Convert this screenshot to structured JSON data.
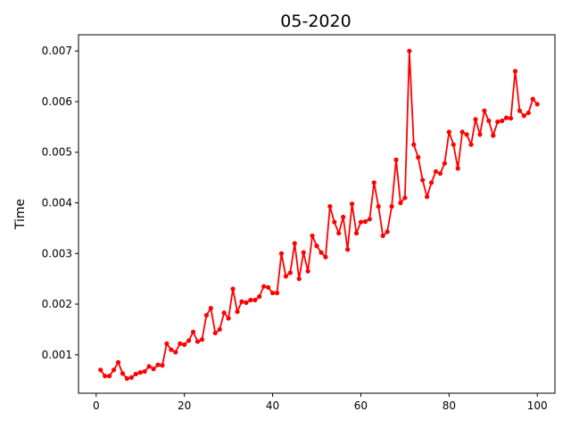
{
  "chart_data": {
    "type": "line",
    "title": "05-2020",
    "xlabel": "",
    "ylabel": "Time",
    "xlim": [
      -4,
      104
    ],
    "ylim": [
      0.00024,
      0.00732
    ],
    "xticks": [
      0,
      20,
      40,
      60,
      80,
      100
    ],
    "yticks": [
      0.001,
      0.002,
      0.003,
      0.004,
      0.005,
      0.006,
      0.007
    ],
    "ytick_labels": [
      "0.001",
      "0.002",
      "0.003",
      "0.004",
      "0.005",
      "0.006",
      "0.007"
    ],
    "grid": false,
    "legend": "none",
    "series": [
      {
        "color": "#ff0000",
        "marker": "circle",
        "x": [
          1,
          2,
          3,
          4,
          5,
          6,
          7,
          8,
          9,
          10,
          11,
          12,
          13,
          14,
          15,
          16,
          17,
          18,
          19,
          20,
          21,
          22,
          23,
          24,
          25,
          26,
          27,
          28,
          29,
          30,
          31,
          32,
          33,
          34,
          35,
          36,
          37,
          38,
          39,
          40,
          41,
          42,
          43,
          44,
          45,
          46,
          47,
          48,
          49,
          50,
          51,
          52,
          53,
          54,
          55,
          56,
          57,
          58,
          59,
          60,
          61,
          62,
          63,
          64,
          65,
          66,
          67,
          68,
          69,
          70,
          71,
          72,
          73,
          74,
          75,
          76,
          77,
          78,
          79,
          80,
          81,
          82,
          83,
          84,
          85,
          86,
          87,
          88,
          89,
          90,
          91,
          92,
          93,
          94,
          95,
          96,
          97,
          98,
          99,
          100
        ],
        "y": [
          0.0007,
          0.00058,
          0.00058,
          0.0007,
          0.00085,
          0.00063,
          0.00053,
          0.00055,
          0.00062,
          0.00065,
          0.00067,
          0.00077,
          0.00072,
          0.0008,
          0.00079,
          0.00122,
          0.0011,
          0.00105,
          0.00122,
          0.0012,
          0.00128,
          0.00145,
          0.00126,
          0.0013,
          0.00178,
          0.00192,
          0.00143,
          0.0015,
          0.00183,
          0.00172,
          0.0023,
          0.00185,
          0.00205,
          0.00203,
          0.00208,
          0.00208,
          0.00215,
          0.00235,
          0.00233,
          0.00222,
          0.00222,
          0.003,
          0.00255,
          0.00262,
          0.0032,
          0.0025,
          0.00302,
          0.00265,
          0.00335,
          0.00315,
          0.00302,
          0.00293,
          0.00393,
          0.00362,
          0.0034,
          0.00372,
          0.00308,
          0.00398,
          0.0034,
          0.00362,
          0.00363,
          0.00368,
          0.0044,
          0.00393,
          0.00335,
          0.00343,
          0.00393,
          0.00485,
          0.004,
          0.0041,
          0.007,
          0.00515,
          0.0049,
          0.00445,
          0.00412,
          0.0044,
          0.00462,
          0.00458,
          0.00478,
          0.0054,
          0.00515,
          0.00468,
          0.0054,
          0.00535,
          0.00515,
          0.00565,
          0.00535,
          0.00582,
          0.00562,
          0.00533,
          0.0056,
          0.00562,
          0.00568,
          0.00567,
          0.0066,
          0.00582,
          0.00572,
          0.00578,
          0.00605,
          0.00595
        ]
      }
    ]
  }
}
